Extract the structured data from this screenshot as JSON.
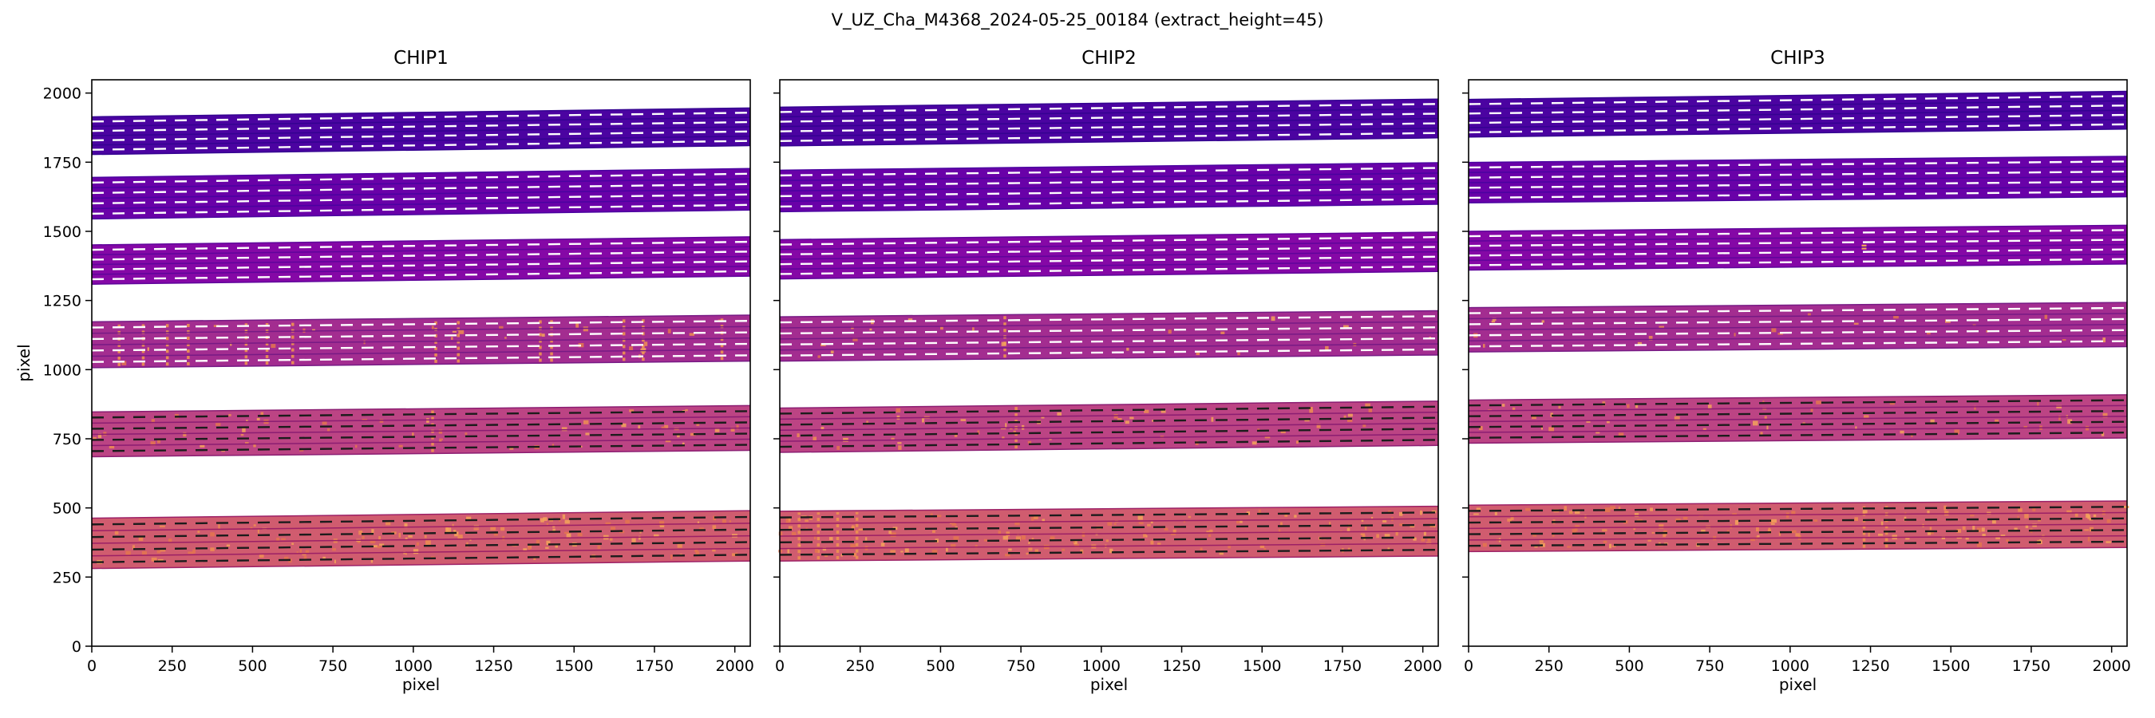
{
  "chart_data": {
    "type": "area",
    "suptitle": "V_UZ_Cha_M4368_2024-05-25_00184  (extract_height=45)",
    "xlabel": "pixel",
    "ylabel": "pixel",
    "xlim": [
      0,
      2048
    ],
    "ylim": [
      0,
      2048
    ],
    "x_ticks": [
      0,
      250,
      500,
      750,
      1000,
      1250,
      1500,
      1750,
      2000
    ],
    "y_ticks": [
      0,
      250,
      500,
      750,
      1000,
      1250,
      1500,
      1750,
      2000
    ],
    "extract_height": 45,
    "n_traces_per_band": 4,
    "grid": false,
    "colors": {
      "background": "#ffffff",
      "frame": "#000000",
      "streak": "#ef9351",
      "speckles": [
        "#ef8e52",
        "#f5a55b",
        "#e4764f"
      ]
    },
    "subplots": [
      {
        "title": "CHIP1",
        "bands": [
          {
            "center_left": 372,
            "center_right": 399,
            "height": 182,
            "fill": "#d05c6f",
            "edge": "#9c2066",
            "dash": "#1c1c1c",
            "speckle": 0.5,
            "streaks_x": [],
            "dots_x": []
          },
          {
            "center_left": 766,
            "center_right": 789,
            "height": 162,
            "fill": "#bc4484",
            "edge": "#8b1d72",
            "dash": "#1c1c1c",
            "speckle": 0.22,
            "streaks_x": [
              1060
            ],
            "dots_x": []
          },
          {
            "center_left": 1090,
            "center_right": 1114,
            "height": 166,
            "fill": "#a32d90",
            "edge": "#771a85",
            "dash": "#ffffff",
            "speckle": 0.1,
            "streaks_x": [
              85,
              160,
              235,
              300,
              480,
              545,
              625,
              1070,
              1140,
              1395,
              1430,
              1655,
              1715,
              1960
            ],
            "dots_x": []
          },
          {
            "center_left": 1380,
            "center_right": 1409,
            "height": 142,
            "fill": "#8508a6",
            "edge": "#5f049b",
            "dash": "#ffffff",
            "speckle": 0,
            "streaks_x": [],
            "dots_x": []
          },
          {
            "center_left": 1620,
            "center_right": 1652,
            "height": 150,
            "fill": "#6901a8",
            "edge": "#4a02a0",
            "dash": "#ffffff",
            "speckle": 0,
            "streaks_x": [],
            "dots_x": []
          },
          {
            "center_left": 1846,
            "center_right": 1878,
            "height": 136,
            "fill": "#4b03a1",
            "edge": "#340291",
            "dash": "#ffffff",
            "speckle": 0,
            "streaks_x": [],
            "dots_x": []
          }
        ]
      },
      {
        "title": "CHIP2",
        "bands": [
          {
            "center_left": 398,
            "center_right": 416,
            "height": 180,
            "fill": "#d05c6f",
            "edge": "#9c2066",
            "dash": "#1c1c1c",
            "speckle": 0.55,
            "streaks_x": [
              60,
              120,
              180,
              240
            ],
            "dots_x": []
          },
          {
            "center_left": 781,
            "center_right": 806,
            "height": 160,
            "fill": "#bc4484",
            "edge": "#8b1d72",
            "dash": "#1c1c1c",
            "speckle": 0.2,
            "streaks_x": [
              735
            ],
            "dots_x": []
          },
          {
            "center_left": 1111,
            "center_right": 1133,
            "height": 160,
            "fill": "#a32d90",
            "edge": "#771a85",
            "dash": "#ffffff",
            "speckle": 0.08,
            "streaks_x": [
              700
            ],
            "dots_x": []
          },
          {
            "center_left": 1399,
            "center_right": 1426,
            "height": 142,
            "fill": "#8508a6",
            "edge": "#5f049b",
            "dash": "#ffffff",
            "speckle": 0,
            "streaks_x": [],
            "dots_x": []
          },
          {
            "center_left": 1646,
            "center_right": 1673,
            "height": 150,
            "fill": "#6901a8",
            "edge": "#4a02a0",
            "dash": "#ffffff",
            "speckle": 0,
            "streaks_x": [],
            "dots_x": []
          },
          {
            "center_left": 1879,
            "center_right": 1908,
            "height": 140,
            "fill": "#4b03a1",
            "edge": "#340291",
            "dash": "#ffffff",
            "speckle": 0,
            "streaks_x": [],
            "dots_x": []
          }
        ]
      },
      {
        "title": "CHIP3",
        "bands": [
          {
            "center_left": 426,
            "center_right": 441,
            "height": 168,
            "fill": "#d05c6f",
            "edge": "#9c2066",
            "dash": "#1c1c1c",
            "speckle": 0.5,
            "streaks_x": [
              1230,
              1300
            ],
            "dots_x": []
          },
          {
            "center_left": 812,
            "center_right": 831,
            "height": 156,
            "fill": "#bc4484",
            "edge": "#8b1d72",
            "dash": "#1c1c1c",
            "speckle": 0.18,
            "streaks_x": [],
            "dots_x": []
          },
          {
            "center_left": 1144,
            "center_right": 1163,
            "height": 160,
            "fill": "#a32d90",
            "edge": "#771a85",
            "dash": "#ffffff",
            "speckle": 0.08,
            "streaks_x": [],
            "dots_x": []
          },
          {
            "center_left": 1430,
            "center_right": 1452,
            "height": 140,
            "fill": "#8508a6",
            "edge": "#5f049b",
            "dash": "#ffffff",
            "speckle": 0,
            "streaks_x": [],
            "dots_x": [
              1230
            ]
          },
          {
            "center_left": 1676,
            "center_right": 1698,
            "height": 146,
            "fill": "#6901a8",
            "edge": "#4a02a0",
            "dash": "#ffffff",
            "speckle": 0,
            "streaks_x": [],
            "dots_x": []
          },
          {
            "center_left": 1909,
            "center_right": 1938,
            "height": 136,
            "fill": "#4b03a1",
            "edge": "#340291",
            "dash": "#ffffff",
            "speckle": 0,
            "streaks_x": [],
            "dots_x": []
          }
        ]
      }
    ]
  }
}
